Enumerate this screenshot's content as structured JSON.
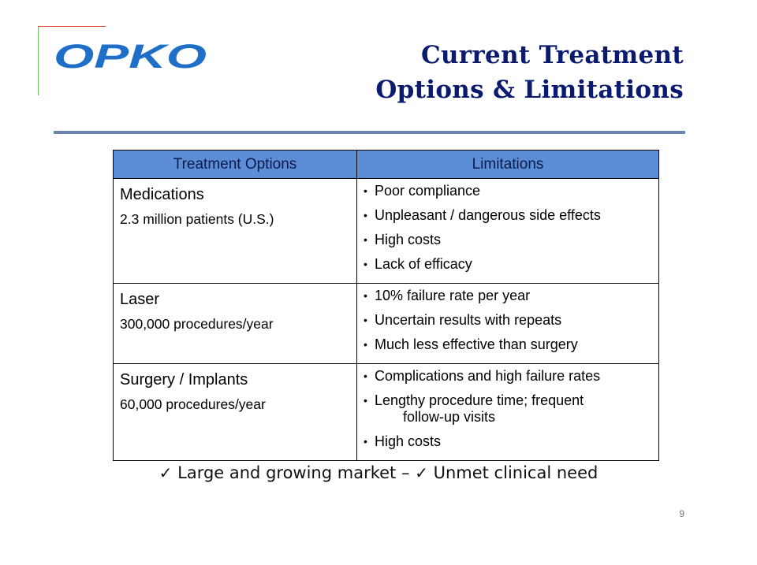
{
  "slide": {
    "logo_text": "OPKO",
    "title_line1": "Current Treatment",
    "title_line2": "Options & Limitations",
    "page_number": "9"
  },
  "table": {
    "headers": [
      "Treatment Options",
      "Limitations"
    ],
    "rows": [
      {
        "option": "Medications",
        "detail": "2.3 million patients (U.S.)",
        "limitations": [
          "Poor compliance",
          "Unpleasant / dangerous side effects",
          "High costs",
          "Lack of efficacy"
        ]
      },
      {
        "option": "Laser",
        "detail": "300,000 procedures/year",
        "limitations": [
          "10% failure rate per year",
          "Uncertain results with repeats",
          "Much less effective than surgery"
        ]
      },
      {
        "option": "Surgery / Implants",
        "detail": "60,000 procedures/year",
        "limitations": [
          "Complications and high failure rates",
          "Lengthy procedure time; frequent",
          "follow-up visits",
          "High costs"
        ]
      }
    ]
  },
  "takeaway": {
    "check_icon": "✓",
    "part1": "Large and growing market –",
    "part2": "Unmet clinical need"
  },
  "colors": {
    "title": "#0a1a6e",
    "header_fill": "#5b8ed6",
    "logo_blue": "#1f6fc8",
    "rule": "#6d83b0"
  }
}
